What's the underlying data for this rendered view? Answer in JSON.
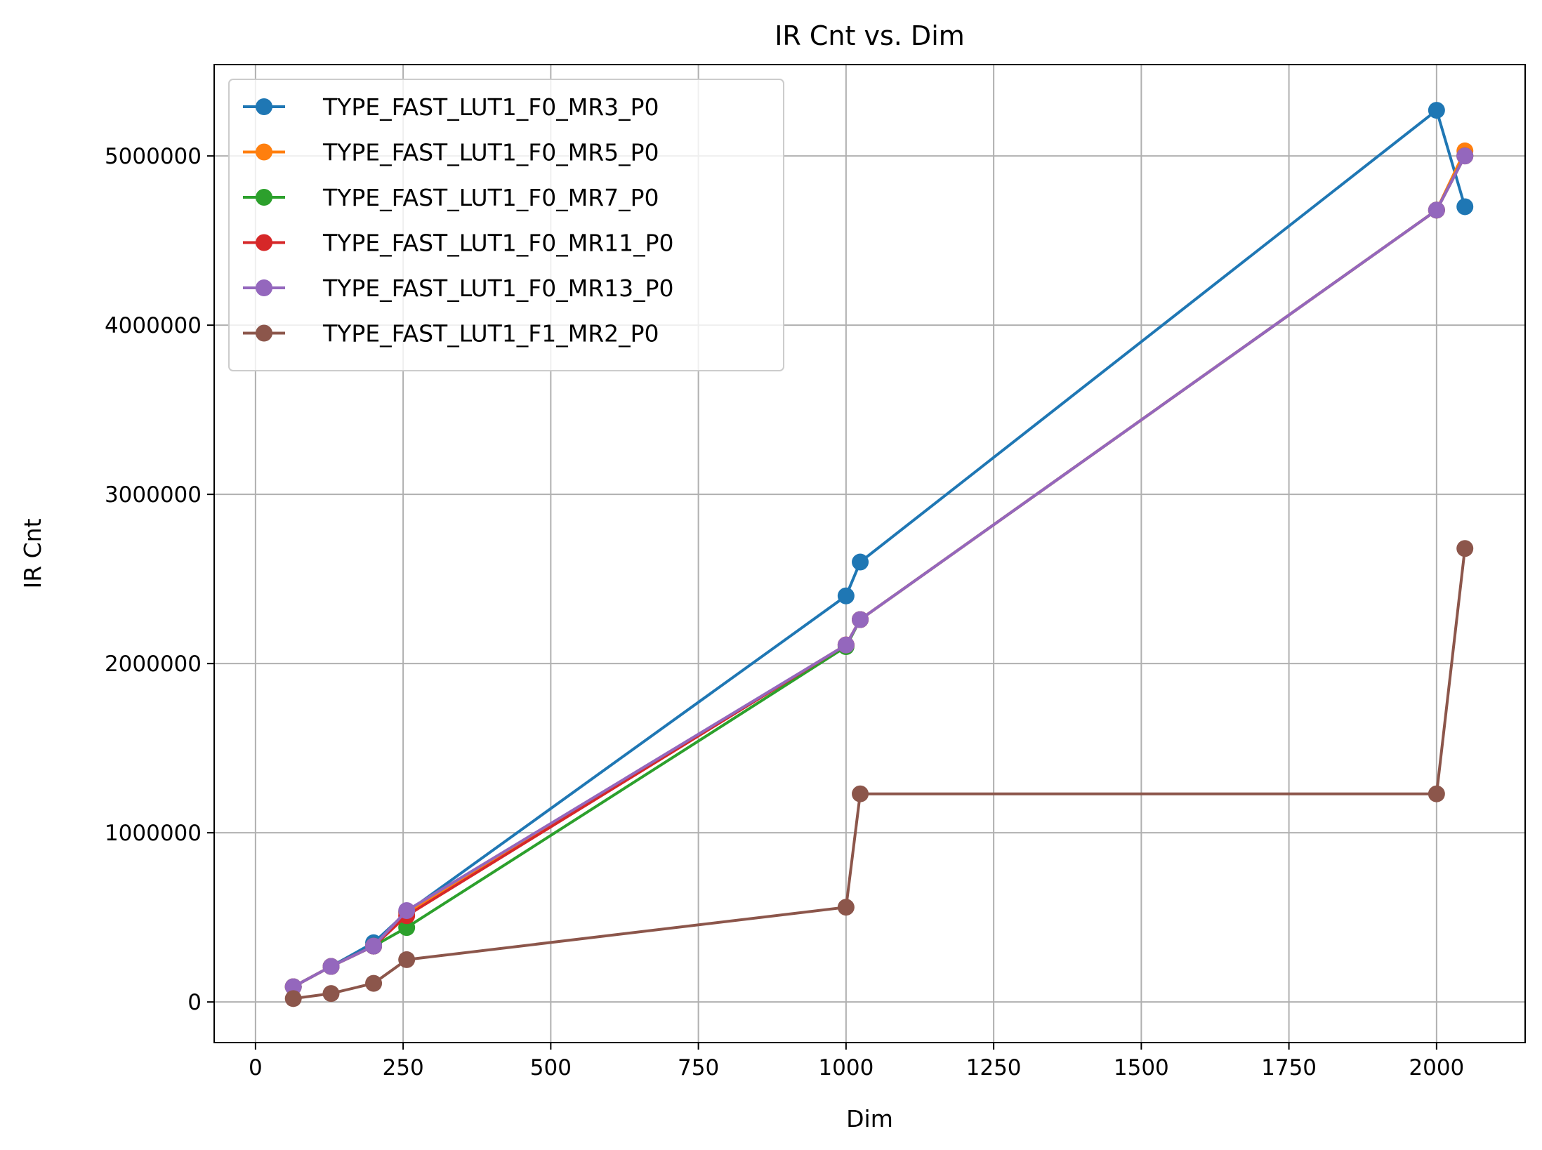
{
  "chart_data": {
    "type": "line",
    "title": "IR Cnt vs. Dim",
    "xlabel": "Dim",
    "ylabel": "IR Cnt",
    "xlim": [
      -70,
      2150
    ],
    "ylim": [
      -240000,
      5540000
    ],
    "xticks": [
      0,
      250,
      500,
      750,
      1000,
      1250,
      1500,
      1750,
      2000
    ],
    "xtick_labels": [
      "0",
      "250",
      "500",
      "750",
      "1000",
      "1250",
      "1500",
      "1750",
      "2000"
    ],
    "yticks": [
      0,
      1000000,
      2000000,
      3000000,
      4000000,
      5000000
    ],
    "ytick_labels": [
      "0",
      "1000000",
      "2000000",
      "3000000",
      "4000000",
      "5000000"
    ],
    "grid": true,
    "legend_position": "upper-left",
    "x": [
      64,
      128,
      200,
      256,
      1000,
      1024,
      2000,
      2048
    ],
    "series": [
      {
        "name": "TYPE_FAST_LUT1_F0_MR3_P0",
        "color": "#1f77b4",
        "values": [
          90000,
          210000,
          350000,
          530000,
          2400000,
          2600000,
          5270000,
          4700000
        ]
      },
      {
        "name": "TYPE_FAST_LUT1_F0_MR5_P0",
        "color": "#ff7f0e",
        "values": [
          90000,
          210000,
          330000,
          530000,
          2110000,
          2260000,
          4680000,
          5030000
        ]
      },
      {
        "name": "TYPE_FAST_LUT1_F0_MR7_P0",
        "color": "#2ca02c",
        "values": [
          90000,
          210000,
          330000,
          440000,
          2100000,
          2260000,
          4680000,
          5000000
        ]
      },
      {
        "name": "TYPE_FAST_LUT1_F0_MR11_P0",
        "color": "#d62728",
        "values": [
          90000,
          210000,
          330000,
          510000,
          2110000,
          2260000,
          4680000,
          5000000
        ]
      },
      {
        "name": "TYPE_FAST_LUT1_F0_MR13_P0",
        "color": "#9467bd",
        "values": [
          90000,
          210000,
          330000,
          540000,
          2110000,
          2260000,
          4680000,
          5000000
        ]
      },
      {
        "name": "TYPE_FAST_LUT1_F1_MR2_P0",
        "color": "#8c564b",
        "values": [
          20000,
          50000,
          110000,
          250000,
          560000,
          1230000,
          1230000,
          2680000
        ]
      }
    ]
  }
}
